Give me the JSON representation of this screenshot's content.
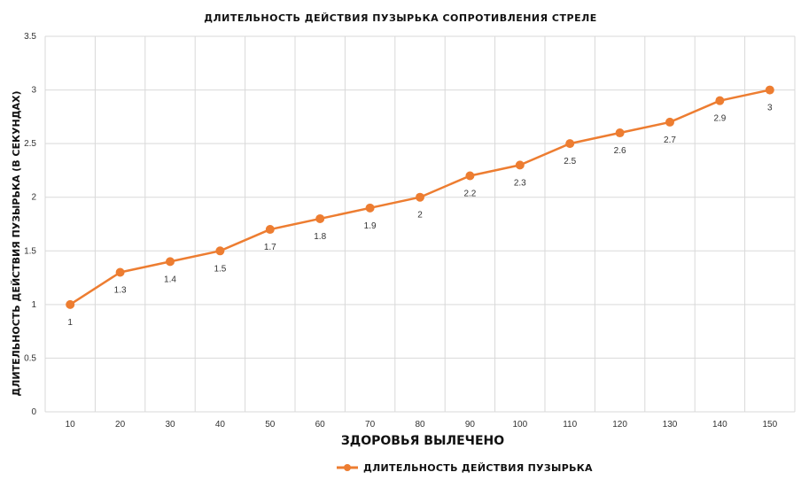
{
  "chart_data": {
    "type": "line",
    "title": "ДЛИТЕЛЬНОСТЬ ДЕЙСТВИЯ ПУЗЫРЬКА СОПРОТИВЛЕНИЯ СТРЕЛЕ",
    "xlabel": "ЗДОРОВЬЯ ВЫЛЕЧЕНО",
    "ylabel": "ДЛИТЕЛЬНОСТЬ ДЕЙСТВИЯ ПУЗЫРЬКА (В СЕКУНДАХ)",
    "categories": [
      "10",
      "20",
      "30",
      "40",
      "50",
      "60",
      "70",
      "80",
      "90",
      "100",
      "110",
      "120",
      "130",
      "140",
      "150"
    ],
    "series": [
      {
        "name": "ДЛИТЕЛЬНОСТЬ ДЕЙСТВИЯ ПУЗЫРЬКА",
        "values": [
          1,
          1.3,
          1.4,
          1.5,
          1.7,
          1.8,
          1.9,
          2,
          2.2,
          2.3,
          2.5,
          2.6,
          2.7,
          2.9,
          3
        ],
        "data_labels": [
          "1",
          "1.3",
          "1.4",
          "1.5",
          "1.7",
          "1.8",
          "1.9",
          "2",
          "2.2",
          "2.3",
          "2.5",
          "2.6",
          "2.7",
          "2.9",
          "3"
        ]
      }
    ],
    "yticks": [
      "0",
      "0.5",
      "1",
      "1.5",
      "2",
      "2.5",
      "3",
      "3.5"
    ],
    "ylim": [
      0,
      3.5
    ],
    "grid": true,
    "legend_position": "bottom",
    "colors": {
      "series": "#ED7D31",
      "grid": "#D9D9D9"
    }
  }
}
